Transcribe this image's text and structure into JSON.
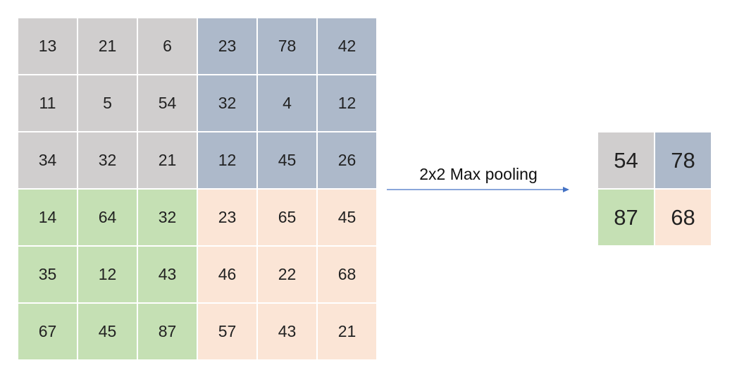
{
  "colors": {
    "gray": "#d0cece",
    "blue": "#adb9ca",
    "green": "#c5e0b4",
    "peach": "#fbe5d6",
    "arrow": "#4472c4"
  },
  "input_matrix": {
    "rows": [
      [
        "13",
        "21",
        "6",
        "23",
        "78",
        "42"
      ],
      [
        "11",
        "5",
        "54",
        "32",
        "4",
        "12"
      ],
      [
        "34",
        "32",
        "21",
        "12",
        "45",
        "26"
      ],
      [
        "14",
        "64",
        "32",
        "23",
        "65",
        "45"
      ],
      [
        "35",
        "12",
        "43",
        "46",
        "22",
        "68"
      ],
      [
        "67",
        "45",
        "87",
        "57",
        "43",
        "21"
      ]
    ],
    "quadrant_colors": [
      [
        "gray",
        "blue"
      ],
      [
        "green",
        "peach"
      ]
    ]
  },
  "operation": {
    "label": "2x2 Max pooling"
  },
  "output_matrix": {
    "rows": [
      [
        "54",
        "78"
      ],
      [
        "87",
        "68"
      ]
    ],
    "cell_colors": [
      [
        "gray",
        "blue"
      ],
      [
        "green",
        "peach"
      ]
    ]
  }
}
